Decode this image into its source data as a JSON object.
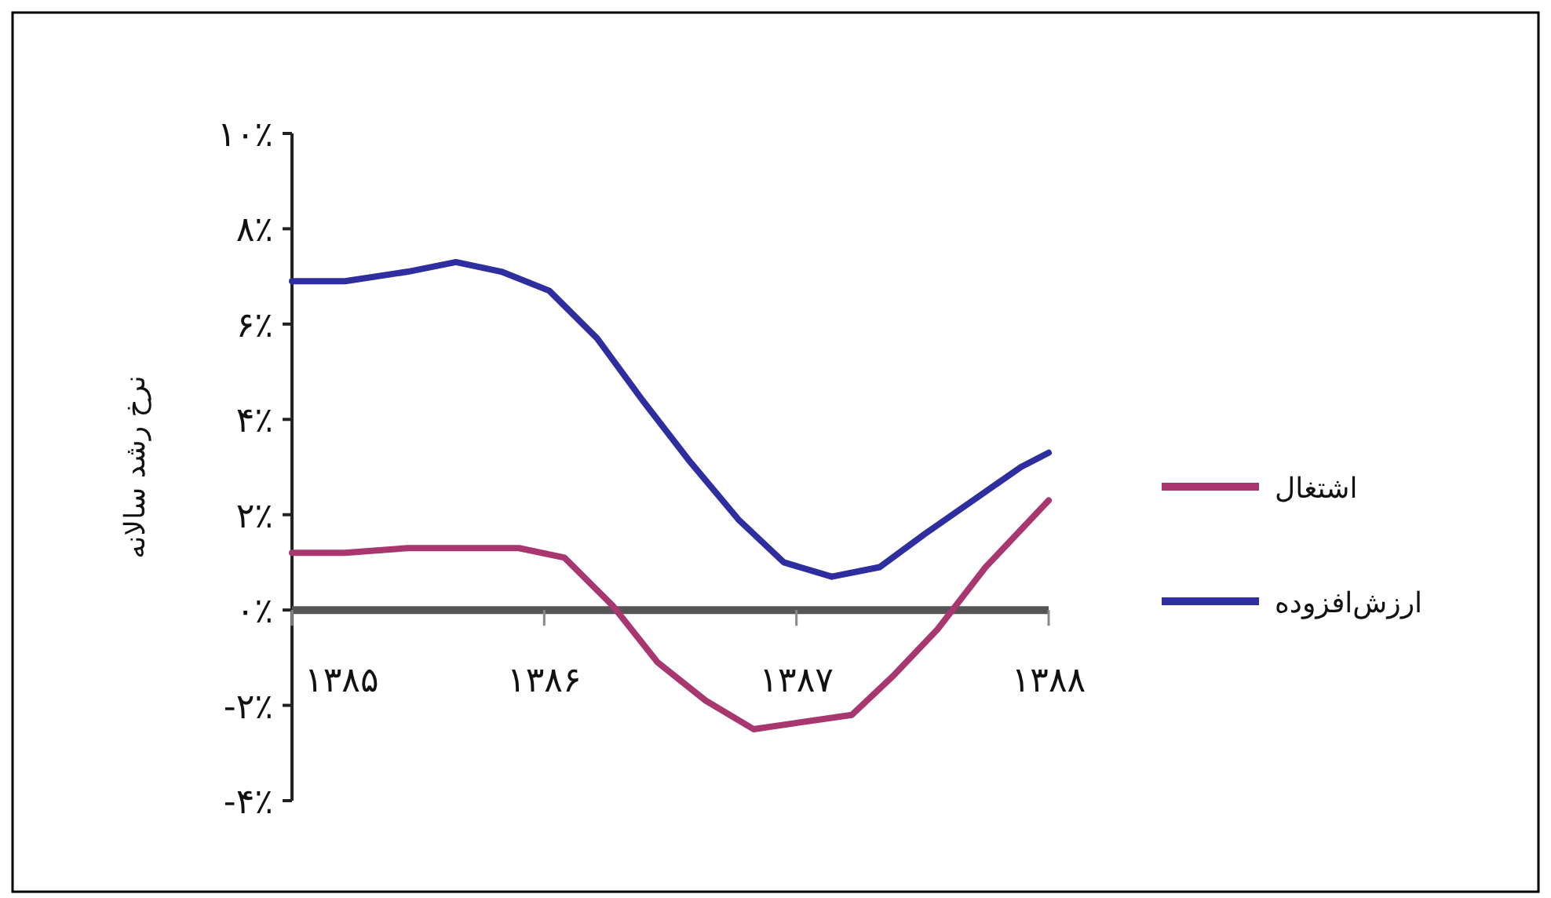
{
  "chart_data": {
    "type": "line",
    "ylabel": "نرخ رشد سالانه",
    "xlim": [
      1385,
      1388
    ],
    "xticks": [
      {
        "value": 1385,
        "label": "۱۳۸۵"
      },
      {
        "value": 1386,
        "label": "۱۳۸۶"
      },
      {
        "value": 1387,
        "label": "۱۳۸۷"
      },
      {
        "value": 1388,
        "label": "۱۳۸۸"
      }
    ],
    "ylim": [
      -4,
      10
    ],
    "yticks": [
      {
        "value": -4,
        "label": "-۴٪"
      },
      {
        "value": -2,
        "label": "-۲٪"
      },
      {
        "value": 0,
        "label": "۰٪"
      },
      {
        "value": 2,
        "label": "۲٪"
      },
      {
        "value": 4,
        "label": "۴٪"
      },
      {
        "value": 6,
        "label": "۶٪"
      },
      {
        "value": 8,
        "label": "۸٪"
      },
      {
        "value": 10,
        "label": "۱۰٪"
      }
    ],
    "x": [
      1385,
      1385.21,
      1385.46,
      1385.65,
      1385.83,
      1386.02,
      1386.21,
      1386.39,
      1386.58,
      1386.77,
      1386.95,
      1387.14,
      1387.33,
      1387.51,
      1387.7,
      1387.89,
      1388
    ],
    "series": [
      {
        "name": "اشتغال",
        "color": "#a8366f",
        "x": [
          1385,
          1385.21,
          1385.46,
          1385.71,
          1385.9,
          1386.08,
          1386.27,
          1386.45,
          1386.64,
          1386.83,
          1387.22,
          1387.38,
          1387.56,
          1387.75,
          1388
        ],
        "values": [
          1.2,
          1.2,
          1.3,
          1.3,
          1.3,
          1.1,
          0.1,
          -1.1,
          -1.9,
          -2.5,
          -2.2,
          -1.4,
          -0.4,
          0.9,
          2.3
        ]
      },
      {
        "name": "ارزش‌افزوده",
        "color": "#2e2ea0",
        "values": [
          6.9,
          6.9,
          7.1,
          7.3,
          7.1,
          6.7,
          5.7,
          4.4,
          3.1,
          1.9,
          1.0,
          0.7,
          0.9,
          1.6,
          2.3,
          3.0,
          3.3
        ]
      }
    ],
    "legend": "right",
    "grid": false
  }
}
